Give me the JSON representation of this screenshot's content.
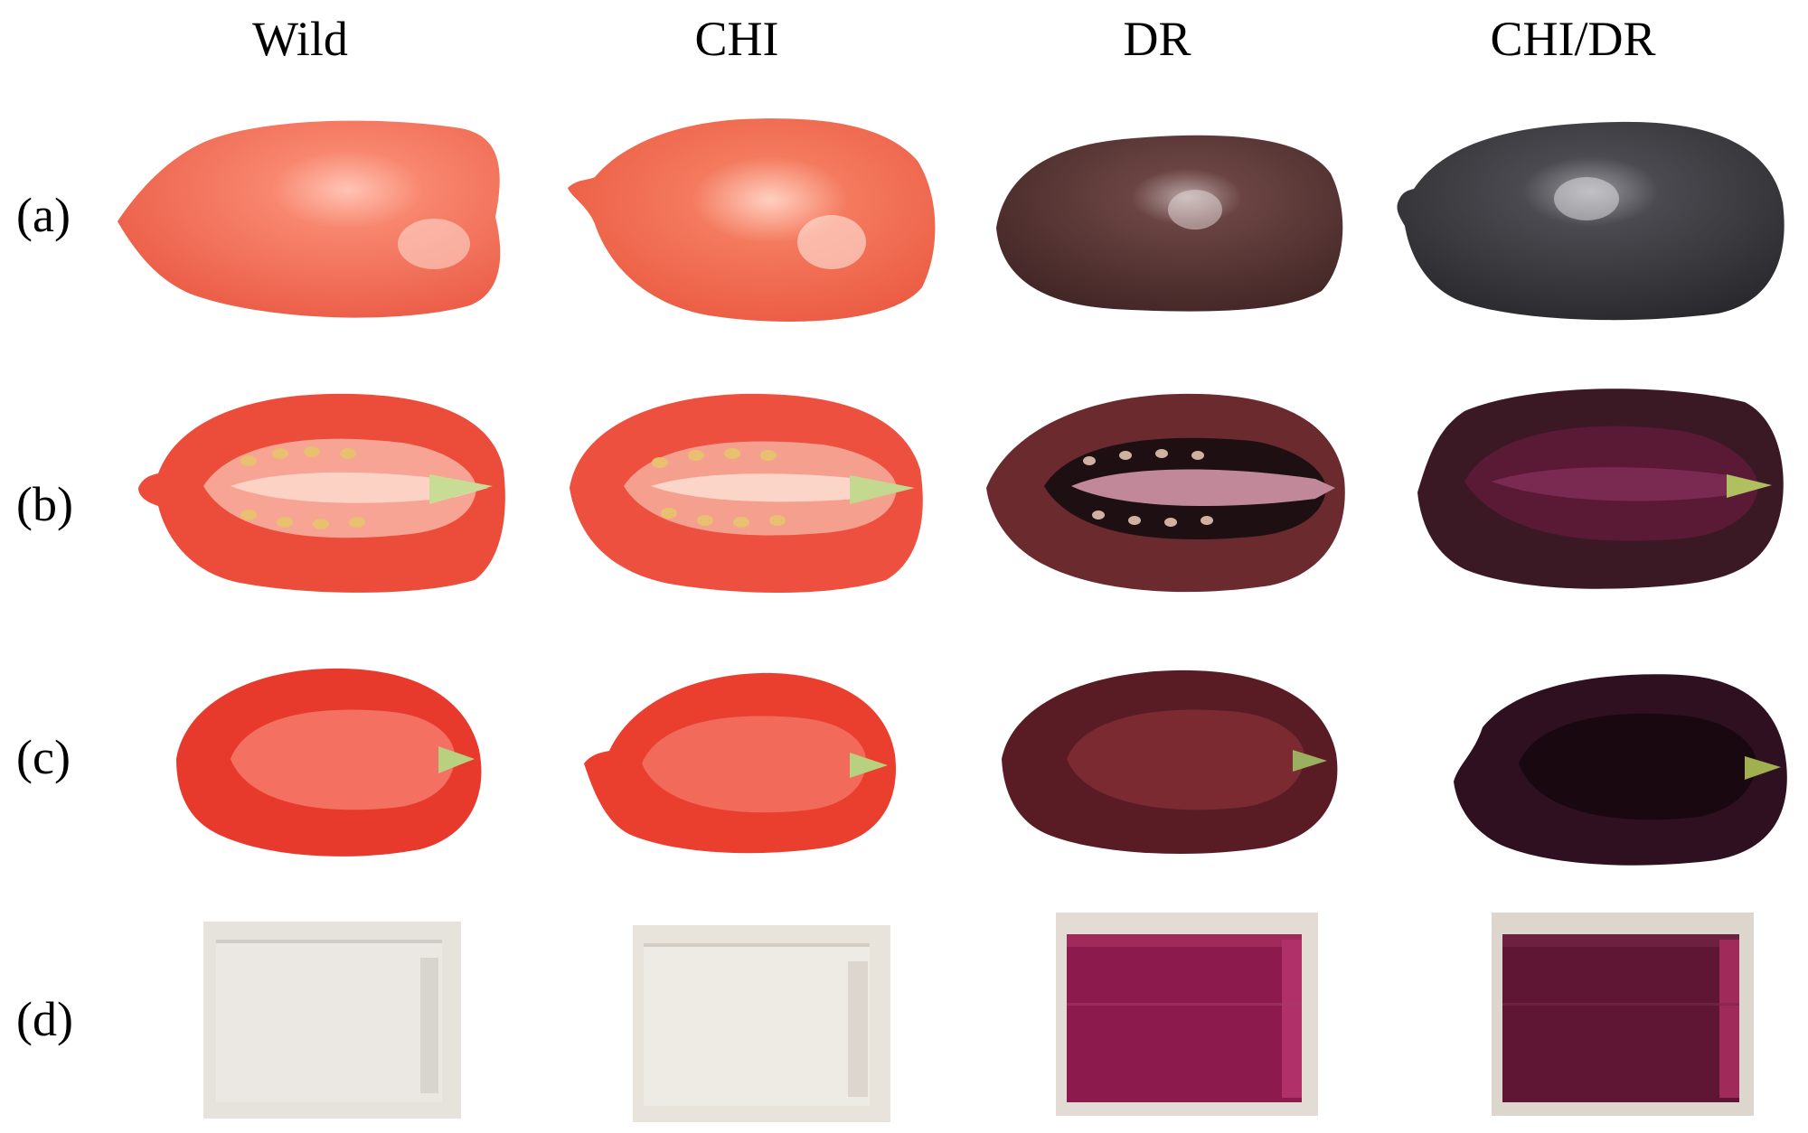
{
  "columns": [
    {
      "label": "Wild"
    },
    {
      "label": "CHI"
    },
    {
      "label": "DR"
    },
    {
      "label": "CHI/DR"
    }
  ],
  "rows": [
    {
      "label": "(a)"
    },
    {
      "label": "(b)"
    },
    {
      "label": "(c)"
    },
    {
      "label": "(d)"
    }
  ],
  "colors": {
    "wild_skin": "#f0705c",
    "chi_skin": "#f2684e",
    "dr_skin": "#4a2a28",
    "chidr_skin": "#2c2c30",
    "red_flesh": "#ef4a3a",
    "purple_flesh": "#4a1a2a",
    "extract_clear": "#e8e6e2",
    "extract_magenta": "#8a1a4a",
    "extract_dark": "#5a1434"
  }
}
